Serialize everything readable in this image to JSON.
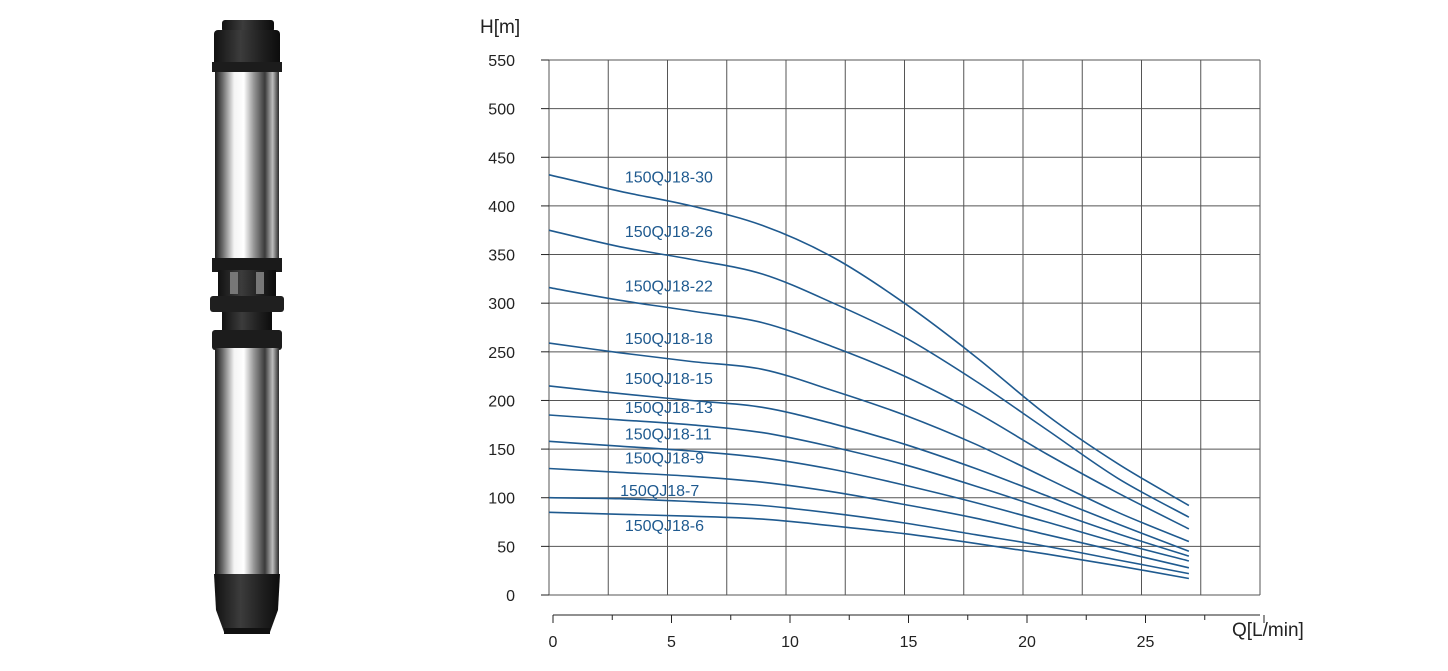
{
  "colors": {
    "curve": "#1f5a8f",
    "label": "#1f5a8f",
    "grid": "#555555",
    "axis": "#222222",
    "steel_dark": "#2b2b2b",
    "steel_light": "#e8e8e8"
  },
  "product_image": {
    "icon": "submersible-pump-icon"
  },
  "chart_data": {
    "type": "line",
    "title": "",
    "xlabel": "Q[L/min]",
    "ylabel": "H[m]",
    "xlim": [
      0,
      30
    ],
    "ylim": [
      0,
      550
    ],
    "x_ticks": [
      0,
      5,
      10,
      15,
      20,
      25
    ],
    "y_ticks": [
      0,
      50,
      100,
      150,
      200,
      250,
      300,
      350,
      400,
      450,
      500,
      550
    ],
    "grid": true,
    "legend": "inline-labels",
    "x": [
      0,
      3,
      6,
      9,
      12,
      15,
      18,
      21,
      24,
      27
    ],
    "series": [
      {
        "name": "150QJ18-30",
        "label_x": 3.2,
        "label_y": 424,
        "values": [
          432,
          415,
          400,
          380,
          347,
          300,
          245,
          185,
          135,
          92
        ]
      },
      {
        "name": "150QJ18-26",
        "label_x": 3.2,
        "label_y": 368,
        "values": [
          375,
          358,
          345,
          330,
          300,
          265,
          220,
          170,
          120,
          80
        ]
      },
      {
        "name": "150QJ18-22",
        "label_x": 3.2,
        "label_y": 312,
        "values": [
          316,
          303,
          292,
          280,
          255,
          225,
          188,
          145,
          105,
          68
        ]
      },
      {
        "name": "150QJ18-18",
        "label_x": 3.2,
        "label_y": 258,
        "values": [
          259,
          249,
          240,
          232,
          210,
          185,
          155,
          120,
          85,
          55
        ]
      },
      {
        "name": "150QJ18-15",
        "label_x": 3.2,
        "label_y": 217,
        "values": [
          215,
          207,
          200,
          193,
          176,
          155,
          130,
          102,
          73,
          45
        ]
      },
      {
        "name": "150QJ18-13",
        "label_x": 3.2,
        "label_y": 187,
        "values": [
          185,
          180,
          175,
          167,
          152,
          134,
          112,
          88,
          63,
          40
        ]
      },
      {
        "name": "150QJ18-11",
        "label_x": 3.2,
        "label_y": 160,
        "values": [
          158,
          153,
          148,
          141,
          129,
          113,
          95,
          75,
          54,
          35
        ]
      },
      {
        "name": "150QJ18-9",
        "label_x": 3.2,
        "label_y": 135,
        "values": [
          130,
          126,
          122,
          116,
          106,
          93,
          79,
          62,
          45,
          28
        ]
      },
      {
        "name": "150QJ18-7",
        "label_x": 3.0,
        "label_y": 102,
        "values": [
          100,
          99,
          96,
          92,
          84,
          74,
          62,
          50,
          36,
          22
        ]
      },
      {
        "name": "150QJ18-6",
        "label_x": 3.2,
        "label_y": 66,
        "values": [
          85,
          83,
          81,
          78,
          71,
          63,
          53,
          42,
          30,
          17
        ]
      }
    ]
  }
}
